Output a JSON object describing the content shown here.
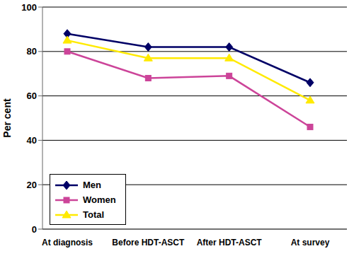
{
  "chart_data": {
    "type": "line",
    "categories": [
      "At diagnosis",
      "Before HDT-ASCT",
      "After HDT-ASCT",
      "At survey"
    ],
    "series": [
      {
        "name": "Men",
        "color": "#000066",
        "marker": "diamond",
        "values": [
          88,
          82,
          82,
          66
        ]
      },
      {
        "name": "Women",
        "color": "#cc4499",
        "marker": "square",
        "values": [
          80,
          68,
          69,
          46
        ]
      },
      {
        "name": "Total",
        "color": "#ffea00",
        "marker": "triangle",
        "values": [
          85,
          77,
          77,
          58
        ]
      }
    ],
    "y_label": "Per cent",
    "ylim": [
      0,
      100
    ],
    "yticks": [
      0,
      20,
      40,
      60,
      80,
      100
    ],
    "grid": true,
    "legend": "lower left"
  }
}
